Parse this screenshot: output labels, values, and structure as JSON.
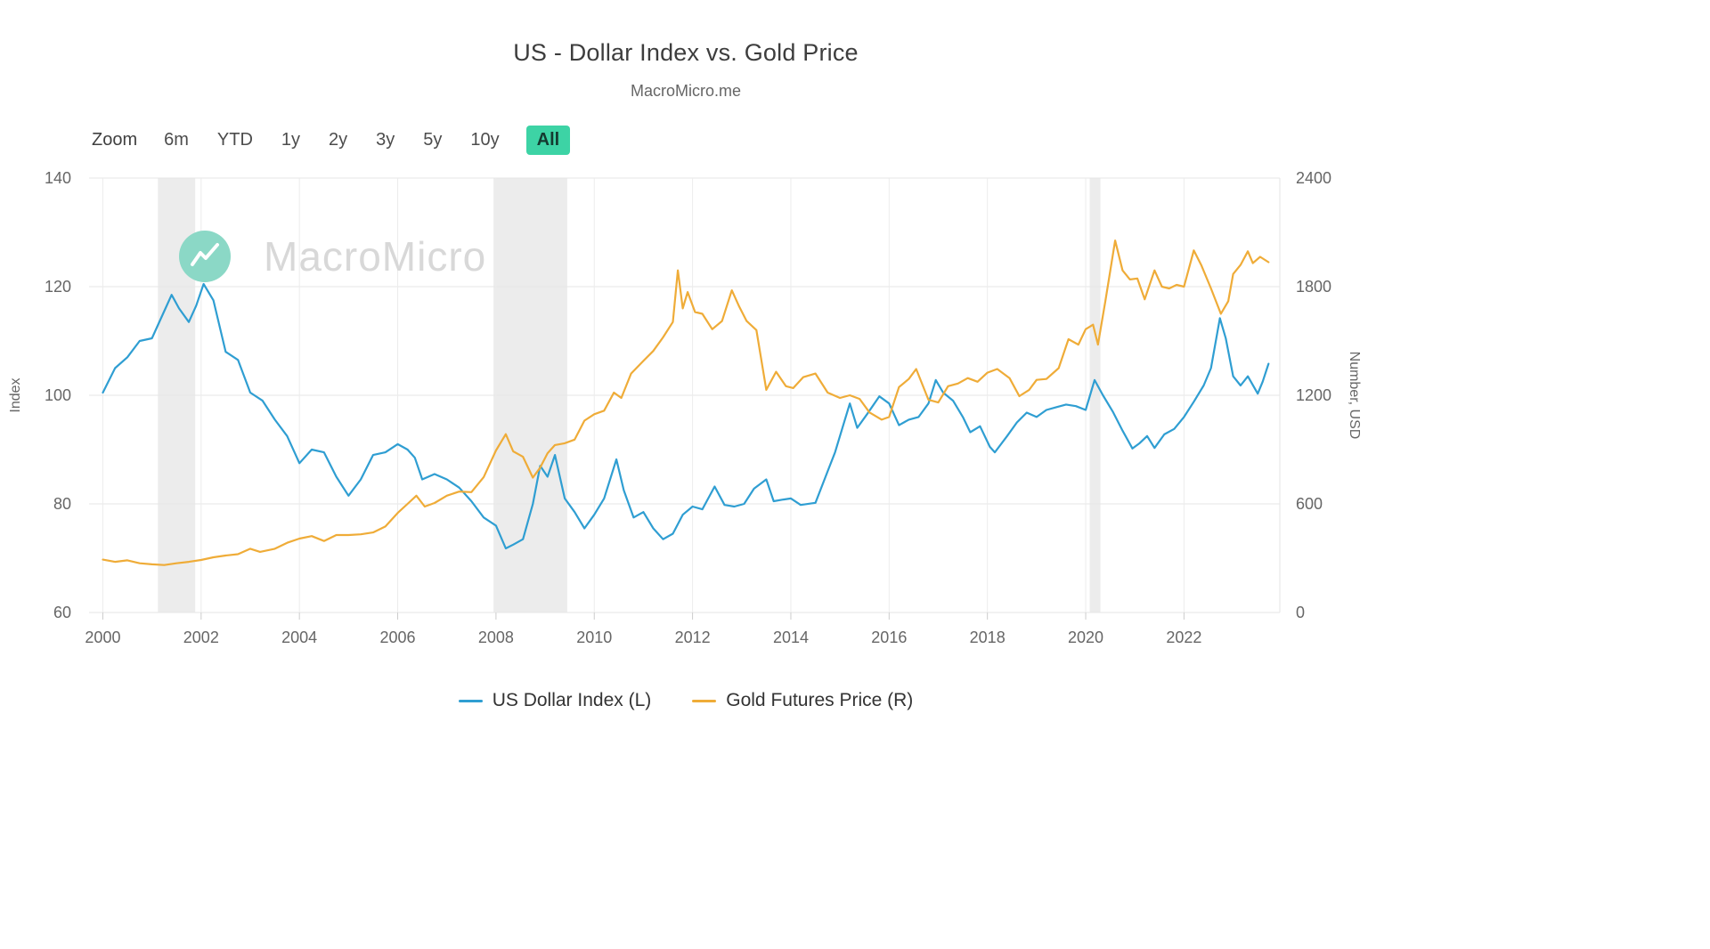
{
  "header": {
    "title": "US - Dollar Index vs. Gold Price",
    "subtitle": "MacroMicro.me"
  },
  "toolbar": {
    "zoom_label": "Zoom",
    "ranges": [
      "6m",
      "YTD",
      "1y",
      "2y",
      "3y",
      "5y",
      "10y",
      "All"
    ],
    "selected": "All",
    "selected_bg": "#3DD3A5",
    "selected_color": "#143a30"
  },
  "watermark": {
    "text": "MacroMicro",
    "logo_color": "#8BD8C6",
    "text_color": "#D8D8D8"
  },
  "chart_data": {
    "type": "line",
    "title": "US - Dollar Index vs. Gold Price",
    "subtitle": "MacroMicro.me",
    "grid": true,
    "legend_position": "bottom",
    "band_color": "#ececec",
    "x_axis": {
      "range": [
        1999.72,
        2023.95
      ],
      "ticks": [
        2000,
        2002,
        2004,
        2006,
        2008,
        2010,
        2012,
        2014,
        2016,
        2018,
        2020,
        2022
      ]
    },
    "y_left": {
      "label": "Index",
      "range": [
        60,
        140
      ],
      "ticks": [
        60,
        80,
        100,
        120,
        140
      ]
    },
    "y_right": {
      "label": "Number, USD",
      "range": [
        0,
        2400
      ],
      "ticks": [
        0,
        600,
        1200,
        1800,
        2400
      ]
    },
    "plot_bands": [
      {
        "from": 2001.12,
        "to": 2001.88
      },
      {
        "from": 2007.95,
        "to": 2009.45
      },
      {
        "from": 2020.08,
        "to": 2020.3
      }
    ],
    "series": [
      {
        "name": "US Dollar Index (L)",
        "axis": "left",
        "color": "#2F9ED2",
        "points": [
          [
            2000,
            100.5
          ],
          [
            2000.25,
            105
          ],
          [
            2000.5,
            107
          ],
          [
            2000.75,
            110
          ],
          [
            2001,
            110.5
          ],
          [
            2001.25,
            115.5
          ],
          [
            2001.4,
            118.5
          ],
          [
            2001.55,
            116
          ],
          [
            2001.75,
            113.5
          ],
          [
            2001.9,
            116.5
          ],
          [
            2002.05,
            120.5
          ],
          [
            2002.25,
            117.5
          ],
          [
            2002.5,
            108
          ],
          [
            2002.75,
            106.5
          ],
          [
            2003,
            100.5
          ],
          [
            2003.25,
            99
          ],
          [
            2003.5,
            95.5
          ],
          [
            2003.75,
            92.5
          ],
          [
            2004,
            87.5
          ],
          [
            2004.25,
            90
          ],
          [
            2004.5,
            89.5
          ],
          [
            2004.75,
            85
          ],
          [
            2005,
            81.5
          ],
          [
            2005.25,
            84.5
          ],
          [
            2005.5,
            89
          ],
          [
            2005.75,
            89.5
          ],
          [
            2006,
            91
          ],
          [
            2006.2,
            90
          ],
          [
            2006.35,
            88.5
          ],
          [
            2006.5,
            84.5
          ],
          [
            2006.75,
            85.5
          ],
          [
            2007,
            84.5
          ],
          [
            2007.25,
            83
          ],
          [
            2007.5,
            80.5
          ],
          [
            2007.75,
            77.5
          ],
          [
            2008,
            76
          ],
          [
            2008.2,
            71.8
          ],
          [
            2008.35,
            72.5
          ],
          [
            2008.55,
            73.5
          ],
          [
            2008.75,
            80
          ],
          [
            2008.9,
            87
          ],
          [
            2009.05,
            85
          ],
          [
            2009.2,
            89
          ],
          [
            2009.4,
            81
          ],
          [
            2009.6,
            78.5
          ],
          [
            2009.8,
            75.5
          ],
          [
            2010,
            78
          ],
          [
            2010.2,
            81
          ],
          [
            2010.45,
            88.2
          ],
          [
            2010.6,
            82.5
          ],
          [
            2010.8,
            77.5
          ],
          [
            2011,
            78.5
          ],
          [
            2011.2,
            75.5
          ],
          [
            2011.4,
            73.5
          ],
          [
            2011.6,
            74.5
          ],
          [
            2011.8,
            78
          ],
          [
            2012,
            79.5
          ],
          [
            2012.2,
            79
          ],
          [
            2012.45,
            83.2
          ],
          [
            2012.65,
            79.8
          ],
          [
            2012.85,
            79.5
          ],
          [
            2013.05,
            80
          ],
          [
            2013.25,
            82.8
          ],
          [
            2013.5,
            84.5
          ],
          [
            2013.65,
            80.5
          ],
          [
            2013.85,
            80.8
          ],
          [
            2014,
            81
          ],
          [
            2014.2,
            79.8
          ],
          [
            2014.5,
            80.2
          ],
          [
            2014.75,
            86
          ],
          [
            2014.9,
            89.5
          ],
          [
            2015.05,
            94
          ],
          [
            2015.2,
            98.5
          ],
          [
            2015.35,
            94
          ],
          [
            2015.55,
            96.5
          ],
          [
            2015.8,
            99.8
          ],
          [
            2016,
            98.5
          ],
          [
            2016.2,
            94.5
          ],
          [
            2016.4,
            95.5
          ],
          [
            2016.6,
            96
          ],
          [
            2016.8,
            98.5
          ],
          [
            2016.95,
            102.8
          ],
          [
            2017.1,
            100.5
          ],
          [
            2017.3,
            99
          ],
          [
            2017.5,
            96
          ],
          [
            2017.65,
            93.2
          ],
          [
            2017.85,
            94.3
          ],
          [
            2018.05,
            90.5
          ],
          [
            2018.15,
            89.5
          ],
          [
            2018.4,
            92.5
          ],
          [
            2018.6,
            95
          ],
          [
            2018.8,
            96.8
          ],
          [
            2019,
            96
          ],
          [
            2019.2,
            97.3
          ],
          [
            2019.4,
            97.8
          ],
          [
            2019.6,
            98.3
          ],
          [
            2019.8,
            98
          ],
          [
            2020,
            97.3
          ],
          [
            2020.18,
            102.8
          ],
          [
            2020.35,
            100
          ],
          [
            2020.55,
            97
          ],
          [
            2020.75,
            93.5
          ],
          [
            2020.95,
            90.2
          ],
          [
            2021.1,
            91.2
          ],
          [
            2021.25,
            92.5
          ],
          [
            2021.4,
            90.3
          ],
          [
            2021.6,
            92.8
          ],
          [
            2021.8,
            93.8
          ],
          [
            2022,
            96
          ],
          [
            2022.2,
            98.8
          ],
          [
            2022.4,
            101.8
          ],
          [
            2022.55,
            105
          ],
          [
            2022.73,
            114.2
          ],
          [
            2022.85,
            110.5
          ],
          [
            2023,
            103.5
          ],
          [
            2023.15,
            101.8
          ],
          [
            2023.3,
            103.5
          ],
          [
            2023.5,
            100.3
          ],
          [
            2023.6,
            102.5
          ],
          [
            2023.72,
            105.8
          ]
        ]
      },
      {
        "name": "Gold Futures Price (R)",
        "axis": "right",
        "color": "#EFAC38",
        "points": [
          [
            2000,
            292
          ],
          [
            2000.25,
            280
          ],
          [
            2000.5,
            288
          ],
          [
            2000.75,
            272
          ],
          [
            2001,
            266
          ],
          [
            2001.25,
            262
          ],
          [
            2001.5,
            272
          ],
          [
            2001.75,
            280
          ],
          [
            2002,
            290
          ],
          [
            2002.25,
            305
          ],
          [
            2002.5,
            315
          ],
          [
            2002.75,
            322
          ],
          [
            2003,
            352
          ],
          [
            2003.2,
            335
          ],
          [
            2003.5,
            352
          ],
          [
            2003.75,
            385
          ],
          [
            2004,
            408
          ],
          [
            2004.25,
            422
          ],
          [
            2004.5,
            395
          ],
          [
            2004.75,
            428
          ],
          [
            2005,
            428
          ],
          [
            2005.25,
            432
          ],
          [
            2005.5,
            442
          ],
          [
            2005.75,
            475
          ],
          [
            2006,
            550
          ],
          [
            2006.2,
            600
          ],
          [
            2006.38,
            645
          ],
          [
            2006.55,
            585
          ],
          [
            2006.75,
            605
          ],
          [
            2007,
            645
          ],
          [
            2007.25,
            668
          ],
          [
            2007.5,
            665
          ],
          [
            2007.75,
            748
          ],
          [
            2008,
            895
          ],
          [
            2008.2,
            985
          ],
          [
            2008.35,
            890
          ],
          [
            2008.55,
            860
          ],
          [
            2008.75,
            745
          ],
          [
            2008.9,
            800
          ],
          [
            2009.05,
            880
          ],
          [
            2009.2,
            925
          ],
          [
            2009.4,
            935
          ],
          [
            2009.6,
            955
          ],
          [
            2009.8,
            1060
          ],
          [
            2010,
            1095
          ],
          [
            2010.2,
            1115
          ],
          [
            2010.4,
            1215
          ],
          [
            2010.55,
            1185
          ],
          [
            2010.75,
            1320
          ],
          [
            2011,
            1390
          ],
          [
            2011.2,
            1445
          ],
          [
            2011.4,
            1520
          ],
          [
            2011.6,
            1605
          ],
          [
            2011.7,
            1890
          ],
          [
            2011.8,
            1680
          ],
          [
            2011.9,
            1770
          ],
          [
            2012.05,
            1660
          ],
          [
            2012.2,
            1650
          ],
          [
            2012.4,
            1565
          ],
          [
            2012.6,
            1610
          ],
          [
            2012.8,
            1780
          ],
          [
            2012.95,
            1690
          ],
          [
            2013.1,
            1610
          ],
          [
            2013.3,
            1560
          ],
          [
            2013.5,
            1230
          ],
          [
            2013.7,
            1330
          ],
          [
            2013.9,
            1250
          ],
          [
            2014.05,
            1240
          ],
          [
            2014.25,
            1300
          ],
          [
            2014.5,
            1320
          ],
          [
            2014.75,
            1215
          ],
          [
            2015,
            1185
          ],
          [
            2015.2,
            1200
          ],
          [
            2015.4,
            1180
          ],
          [
            2015.6,
            1105
          ],
          [
            2015.85,
            1065
          ],
          [
            2016,
            1080
          ],
          [
            2016.2,
            1245
          ],
          [
            2016.4,
            1290
          ],
          [
            2016.55,
            1345
          ],
          [
            2016.8,
            1175
          ],
          [
            2017,
            1160
          ],
          [
            2017.2,
            1250
          ],
          [
            2017.4,
            1265
          ],
          [
            2017.6,
            1295
          ],
          [
            2017.8,
            1275
          ],
          [
            2018,
            1325
          ],
          [
            2018.2,
            1345
          ],
          [
            2018.45,
            1295
          ],
          [
            2018.65,
            1195
          ],
          [
            2018.85,
            1230
          ],
          [
            2019,
            1285
          ],
          [
            2019.2,
            1290
          ],
          [
            2019.45,
            1350
          ],
          [
            2019.65,
            1510
          ],
          [
            2019.85,
            1480
          ],
          [
            2020,
            1565
          ],
          [
            2020.15,
            1590
          ],
          [
            2020.25,
            1480
          ],
          [
            2020.4,
            1720
          ],
          [
            2020.6,
            2055
          ],
          [
            2020.75,
            1890
          ],
          [
            2020.9,
            1840
          ],
          [
            2021.05,
            1845
          ],
          [
            2021.2,
            1730
          ],
          [
            2021.4,
            1890
          ],
          [
            2021.55,
            1800
          ],
          [
            2021.7,
            1790
          ],
          [
            2021.85,
            1810
          ],
          [
            2022,
            1800
          ],
          [
            2022.2,
            2000
          ],
          [
            2022.35,
            1920
          ],
          [
            2022.55,
            1790
          ],
          [
            2022.75,
            1650
          ],
          [
            2022.9,
            1720
          ],
          [
            2023,
            1870
          ],
          [
            2023.15,
            1920
          ],
          [
            2023.3,
            1995
          ],
          [
            2023.4,
            1930
          ],
          [
            2023.55,
            1965
          ],
          [
            2023.72,
            1935
          ]
        ]
      }
    ]
  }
}
